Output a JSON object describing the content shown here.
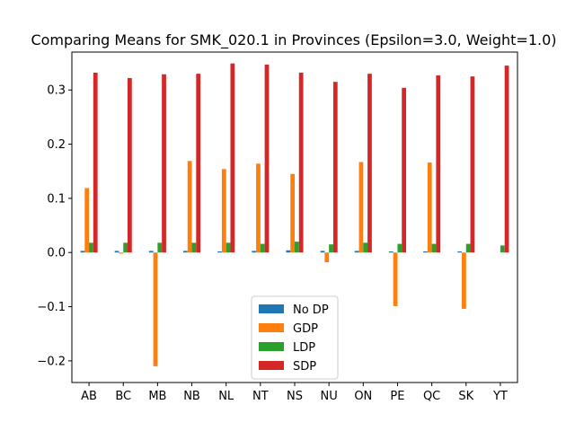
{
  "chart_data": {
    "type": "bar",
    "title": "Comparing Means for SMK_020.1 in Provinces (Epsilon=3.0, Weight=1.0)",
    "xlabel": "",
    "ylabel": "",
    "categories": [
      "AB",
      "BC",
      "MB",
      "NB",
      "NL",
      "NT",
      "NS",
      "NU",
      "ON",
      "PE",
      "QC",
      "SK",
      "YT"
    ],
    "ylim": [
      -0.24,
      0.37
    ],
    "yticks": [
      -0.2,
      -0.1,
      0.0,
      0.1,
      0.2,
      0.3
    ],
    "ytick_labels": [
      "−0.2",
      "−0.1",
      "0.0",
      "0.1",
      "0.2",
      "0.3"
    ],
    "grid": false,
    "legend_position": "lower center",
    "series": [
      {
        "name": "No DP",
        "color": "#1f77b4",
        "values": [
          0.003,
          0.003,
          0.003,
          0.003,
          0.002,
          0.003,
          0.004,
          0.003,
          0.003,
          0.002,
          0.002,
          0.002,
          0.0
        ]
      },
      {
        "name": "GDP",
        "color": "#ff7f0e",
        "values": [
          0.119,
          -0.002,
          -0.21,
          0.169,
          0.154,
          0.164,
          0.145,
          -0.018,
          0.167,
          -0.099,
          0.166,
          -0.104,
          0.0
        ]
      },
      {
        "name": "LDP",
        "color": "#2ca02c",
        "values": [
          0.018,
          0.018,
          0.018,
          0.018,
          0.018,
          0.016,
          0.02,
          0.015,
          0.018,
          0.016,
          0.016,
          0.016,
          0.013
        ]
      },
      {
        "name": "SDP",
        "color": "#d62728",
        "values": [
          0.332,
          0.322,
          0.329,
          0.33,
          0.349,
          0.347,
          0.332,
          0.315,
          0.33,
          0.304,
          0.327,
          0.325,
          0.345
        ]
      }
    ]
  }
}
